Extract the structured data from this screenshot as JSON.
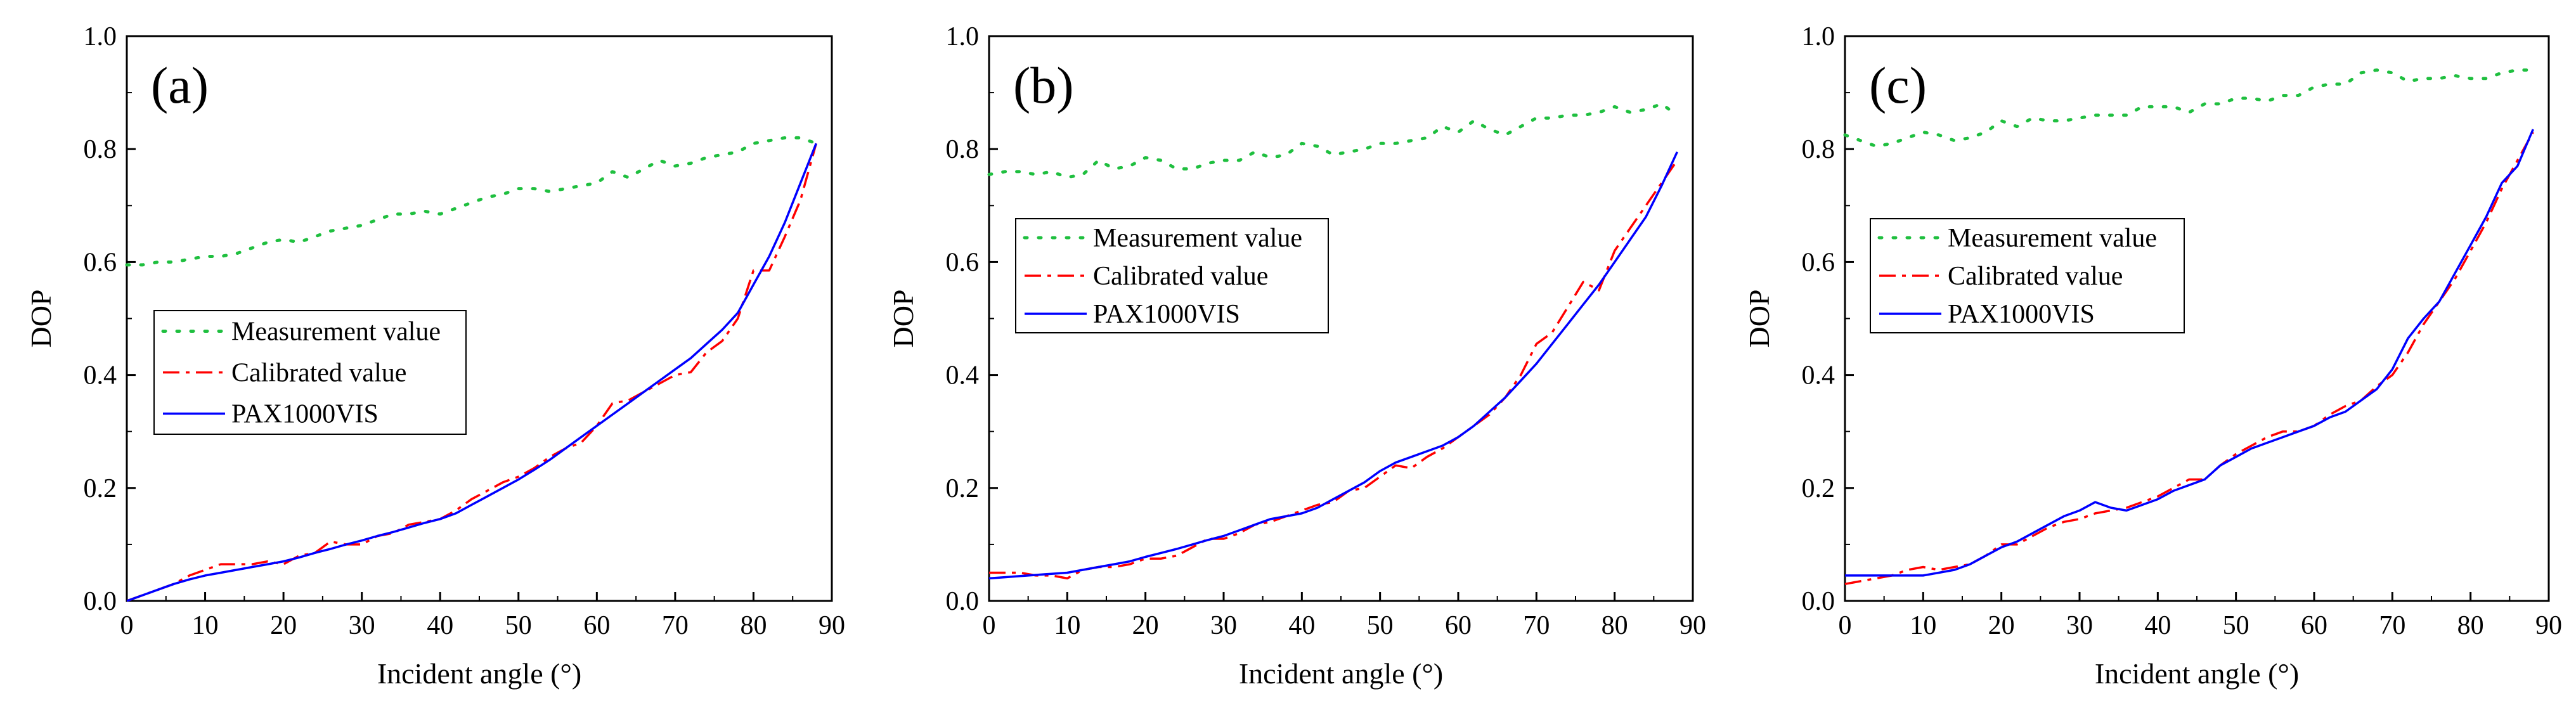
{
  "chart_data": [
    {
      "type": "line",
      "panel_label": "(a)",
      "xlabel": "Incident angle (°)",
      "ylabel": "DOP",
      "xlim": [
        0,
        90
      ],
      "ylim": [
        0,
        1.0
      ],
      "xticks": [
        0,
        10,
        20,
        30,
        40,
        50,
        60,
        70,
        80,
        90
      ],
      "yticks": [
        0.0,
        0.2,
        0.4,
        0.6,
        0.8,
        1.0
      ],
      "xtick_labels": [
        "0",
        "10",
        "20",
        "30",
        "40",
        "50",
        "60",
        "70",
        "80",
        "90"
      ],
      "ytick_labels": [
        "0.0",
        "0.2",
        "0.4",
        "0.6",
        "0.8",
        "1.0"
      ],
      "grid": false,
      "legend_position": "center-left",
      "series": [
        {
          "name": "Measurement value",
          "color": "#1fbf3f",
          "style": "dotted",
          "x": [
            0,
            2,
            4,
            6,
            8,
            10,
            12,
            14,
            16,
            18,
            20,
            22,
            24,
            26,
            28,
            30,
            32,
            34,
            36,
            38,
            40,
            42,
            44,
            46,
            48,
            50,
            52,
            54,
            56,
            58,
            60,
            62,
            64,
            66,
            68,
            70,
            72,
            74,
            76,
            78,
            80,
            82,
            84,
            86,
            88
          ],
          "y": [
            0.595,
            0.595,
            0.6,
            0.6,
            0.605,
            0.61,
            0.61,
            0.615,
            0.625,
            0.635,
            0.64,
            0.635,
            0.645,
            0.655,
            0.66,
            0.665,
            0.675,
            0.685,
            0.685,
            0.69,
            0.685,
            0.695,
            0.705,
            0.715,
            0.72,
            0.73,
            0.73,
            0.725,
            0.73,
            0.735,
            0.74,
            0.76,
            0.75,
            0.765,
            0.78,
            0.77,
            0.775,
            0.785,
            0.79,
            0.795,
            0.81,
            0.815,
            0.82,
            0.82,
            0.81
          ]
        },
        {
          "name": "Calibrated value",
          "color": "#ff0000",
          "style": "dashdot",
          "x": [
            0,
            2,
            4,
            6,
            8,
            10,
            12,
            14,
            16,
            18,
            20,
            22,
            24,
            26,
            28,
            30,
            32,
            34,
            36,
            38,
            40,
            42,
            44,
            46,
            48,
            50,
            52,
            54,
            56,
            58,
            60,
            62,
            64,
            66,
            68,
            70,
            72,
            74,
            76,
            78,
            80,
            82,
            84,
            86,
            88
          ],
          "y": [
            0.0,
            0.01,
            0.02,
            0.03,
            0.045,
            0.055,
            0.065,
            0.065,
            0.065,
            0.07,
            0.065,
            0.08,
            0.085,
            0.105,
            0.1,
            0.1,
            0.115,
            0.12,
            0.135,
            0.14,
            0.145,
            0.16,
            0.18,
            0.195,
            0.21,
            0.22,
            0.235,
            0.255,
            0.27,
            0.28,
            0.31,
            0.35,
            0.355,
            0.37,
            0.385,
            0.4,
            0.405,
            0.44,
            0.46,
            0.5,
            0.585,
            0.585,
            0.645,
            0.71,
            0.81
          ]
        },
        {
          "name": "PAX1000VIS",
          "color": "#0000ff",
          "style": "solid",
          "x": [
            0,
            2,
            4,
            6,
            8,
            10,
            12,
            14,
            16,
            18,
            20,
            22,
            24,
            26,
            28,
            30,
            32,
            34,
            36,
            38,
            40,
            42,
            44,
            46,
            48,
            50,
            52,
            54,
            56,
            58,
            60,
            62,
            64,
            66,
            68,
            70,
            72,
            74,
            76,
            78,
            80,
            82,
            84,
            86,
            88
          ],
          "y": [
            0.0,
            0.01,
            0.02,
            0.03,
            0.038,
            0.045,
            0.05,
            0.055,
            0.06,
            0.065,
            0.07,
            0.077,
            0.085,
            0.092,
            0.1,
            0.107,
            0.115,
            0.122,
            0.13,
            0.138,
            0.145,
            0.155,
            0.17,
            0.185,
            0.2,
            0.215,
            0.232,
            0.25,
            0.27,
            0.29,
            0.31,
            0.33,
            0.35,
            0.37,
            0.39,
            0.41,
            0.43,
            0.455,
            0.48,
            0.51,
            0.56,
            0.61,
            0.67,
            0.74,
            0.81
          ]
        }
      ]
    },
    {
      "type": "line",
      "panel_label": "(b)",
      "xlabel": "Incident angle (°)",
      "ylabel": "DOP",
      "xlim": [
        0,
        90
      ],
      "ylim": [
        0,
        1.0
      ],
      "xticks": [
        0,
        10,
        20,
        30,
        40,
        50,
        60,
        70,
        80,
        90
      ],
      "yticks": [
        0.0,
        0.2,
        0.4,
        0.6,
        0.8,
        1.0
      ],
      "xtick_labels": [
        "0",
        "10",
        "20",
        "30",
        "40",
        "50",
        "60",
        "70",
        "80",
        "90"
      ],
      "ytick_labels": [
        "0.0",
        "0.2",
        "0.4",
        "0.6",
        "0.8",
        "1.0"
      ],
      "grid": false,
      "legend_position": "upper-left",
      "series": [
        {
          "name": "Measurement value",
          "color": "#1fbf3f",
          "style": "dotted",
          "x": [
            0,
            2,
            4,
            6,
            8,
            10,
            12,
            14,
            16,
            18,
            20,
            22,
            24,
            26,
            28,
            30,
            32,
            34,
            36,
            38,
            40,
            42,
            44,
            46,
            48,
            50,
            52,
            54,
            56,
            58,
            60,
            62,
            64,
            66,
            68,
            70,
            72,
            74,
            76,
            78,
            80,
            82,
            84,
            86,
            88
          ],
          "y": [
            0.755,
            0.76,
            0.76,
            0.755,
            0.76,
            0.75,
            0.755,
            0.78,
            0.765,
            0.77,
            0.785,
            0.78,
            0.765,
            0.765,
            0.775,
            0.78,
            0.78,
            0.795,
            0.785,
            0.79,
            0.81,
            0.805,
            0.79,
            0.795,
            0.8,
            0.81,
            0.81,
            0.815,
            0.82,
            0.84,
            0.83,
            0.85,
            0.835,
            0.825,
            0.84,
            0.855,
            0.855,
            0.86,
            0.86,
            0.865,
            0.875,
            0.865,
            0.87,
            0.88,
            0.86
          ]
        },
        {
          "name": "Calibrated value",
          "color": "#ff0000",
          "style": "dashdot",
          "x": [
            0,
            2,
            4,
            6,
            8,
            10,
            12,
            14,
            16,
            18,
            20,
            22,
            24,
            26,
            28,
            30,
            32,
            34,
            36,
            38,
            40,
            42,
            44,
            46,
            48,
            50,
            52,
            54,
            56,
            58,
            60,
            62,
            64,
            66,
            68,
            70,
            72,
            74,
            76,
            78,
            80,
            82,
            84,
            86,
            88
          ],
          "y": [
            0.05,
            0.05,
            0.05,
            0.045,
            0.045,
            0.04,
            0.055,
            0.06,
            0.06,
            0.065,
            0.075,
            0.075,
            0.08,
            0.095,
            0.11,
            0.11,
            0.12,
            0.135,
            0.14,
            0.15,
            0.16,
            0.17,
            0.175,
            0.195,
            0.2,
            0.22,
            0.24,
            0.235,
            0.255,
            0.27,
            0.29,
            0.31,
            0.33,
            0.36,
            0.4,
            0.455,
            0.475,
            0.52,
            0.565,
            0.55,
            0.62,
            0.66,
            0.7,
            0.74,
            0.78
          ]
        },
        {
          "name": "PAX1000VIS",
          "color": "#0000ff",
          "style": "solid",
          "x": [
            0,
            2,
            4,
            6,
            8,
            10,
            12,
            14,
            16,
            18,
            20,
            22,
            24,
            26,
            28,
            30,
            32,
            34,
            36,
            38,
            40,
            42,
            44,
            46,
            48,
            50,
            52,
            54,
            56,
            58,
            60,
            62,
            64,
            66,
            68,
            70,
            72,
            74,
            76,
            78,
            80,
            82,
            84,
            86,
            88
          ],
          "y": [
            0.04,
            0.042,
            0.044,
            0.046,
            0.048,
            0.05,
            0.055,
            0.06,
            0.065,
            0.07,
            0.078,
            0.085,
            0.092,
            0.1,
            0.108,
            0.115,
            0.125,
            0.135,
            0.145,
            0.15,
            0.155,
            0.165,
            0.18,
            0.195,
            0.21,
            0.23,
            0.245,
            0.255,
            0.265,
            0.275,
            0.29,
            0.31,
            0.335,
            0.36,
            0.39,
            0.42,
            0.455,
            0.49,
            0.525,
            0.56,
            0.6,
            0.64,
            0.68,
            0.735,
            0.795
          ]
        }
      ]
    },
    {
      "type": "line",
      "panel_label": "(c)",
      "xlabel": "Incident angle  (°)",
      "ylabel": "DOP",
      "xlim": [
        0,
        90
      ],
      "ylim": [
        0,
        1.0
      ],
      "xticks": [
        0,
        10,
        20,
        30,
        40,
        50,
        60,
        70,
        80,
        90
      ],
      "yticks": [
        0.0,
        0.2,
        0.4,
        0.6,
        0.8,
        1.0
      ],
      "xtick_labels": [
        "0",
        "10",
        "20",
        "30",
        "40",
        "50",
        "60",
        "70",
        "80",
        "90"
      ],
      "ytick_labels": [
        "0.0",
        "0.2",
        "0.4",
        "0.6",
        "0.8",
        "1.0"
      ],
      "grid": false,
      "legend_position": "upper-left",
      "series": [
        {
          "name": "Measurement value",
          "color": "#1fbf3f",
          "style": "dotted",
          "x": [
            0,
            2,
            4,
            6,
            8,
            10,
            12,
            14,
            16,
            18,
            20,
            22,
            24,
            26,
            28,
            30,
            32,
            34,
            36,
            38,
            40,
            42,
            44,
            46,
            48,
            50,
            52,
            54,
            56,
            58,
            60,
            62,
            64,
            66,
            68,
            70,
            72,
            74,
            76,
            78,
            80,
            82,
            84,
            86,
            88
          ],
          "y": [
            0.825,
            0.815,
            0.805,
            0.81,
            0.82,
            0.83,
            0.825,
            0.815,
            0.82,
            0.83,
            0.85,
            0.84,
            0.855,
            0.85,
            0.85,
            0.855,
            0.86,
            0.86,
            0.86,
            0.875,
            0.875,
            0.875,
            0.865,
            0.88,
            0.88,
            0.89,
            0.89,
            0.885,
            0.895,
            0.895,
            0.91,
            0.915,
            0.915,
            0.935,
            0.94,
            0.935,
            0.92,
            0.925,
            0.925,
            0.93,
            0.925,
            0.925,
            0.935,
            0.94,
            0.94
          ]
        },
        {
          "name": "Calibrated value",
          "color": "#ff0000",
          "style": "dashdot",
          "x": [
            0,
            2,
            4,
            6,
            8,
            10,
            12,
            14,
            16,
            18,
            20,
            22,
            24,
            26,
            28,
            30,
            32,
            34,
            36,
            38,
            40,
            42,
            44,
            46,
            48,
            50,
            52,
            54,
            56,
            58,
            60,
            62,
            64,
            66,
            68,
            70,
            72,
            74,
            76,
            78,
            80,
            82,
            84,
            86,
            88
          ],
          "y": [
            0.03,
            0.035,
            0.04,
            0.045,
            0.055,
            0.06,
            0.055,
            0.06,
            0.065,
            0.08,
            0.1,
            0.1,
            0.115,
            0.13,
            0.14,
            0.145,
            0.155,
            0.16,
            0.165,
            0.175,
            0.185,
            0.2,
            0.215,
            0.215,
            0.24,
            0.26,
            0.275,
            0.29,
            0.3,
            0.3,
            0.31,
            0.33,
            0.345,
            0.355,
            0.38,
            0.4,
            0.44,
            0.49,
            0.53,
            0.57,
            0.62,
            0.67,
            0.73,
            0.78,
            0.83
          ]
        },
        {
          "name": "PAX1000VIS",
          "color": "#0000ff",
          "style": "solid",
          "x": [
            0,
            2,
            4,
            6,
            8,
            10,
            12,
            14,
            16,
            18,
            20,
            22,
            24,
            26,
            28,
            30,
            32,
            34,
            36,
            38,
            40,
            42,
            44,
            46,
            48,
            50,
            52,
            54,
            56,
            58,
            60,
            62,
            64,
            66,
            68,
            70,
            72,
            74,
            76,
            78,
            80,
            82,
            84,
            86,
            88
          ],
          "y": [
            0.045,
            0.045,
            0.045,
            0.045,
            0.045,
            0.045,
            0.05,
            0.055,
            0.065,
            0.08,
            0.095,
            0.105,
            0.12,
            0.135,
            0.15,
            0.16,
            0.175,
            0.165,
            0.16,
            0.17,
            0.18,
            0.195,
            0.205,
            0.215,
            0.24,
            0.255,
            0.27,
            0.28,
            0.29,
            0.3,
            0.31,
            0.325,
            0.335,
            0.355,
            0.375,
            0.41,
            0.465,
            0.5,
            0.53,
            0.58,
            0.63,
            0.68,
            0.74,
            0.77,
            0.835
          ]
        }
      ]
    }
  ]
}
